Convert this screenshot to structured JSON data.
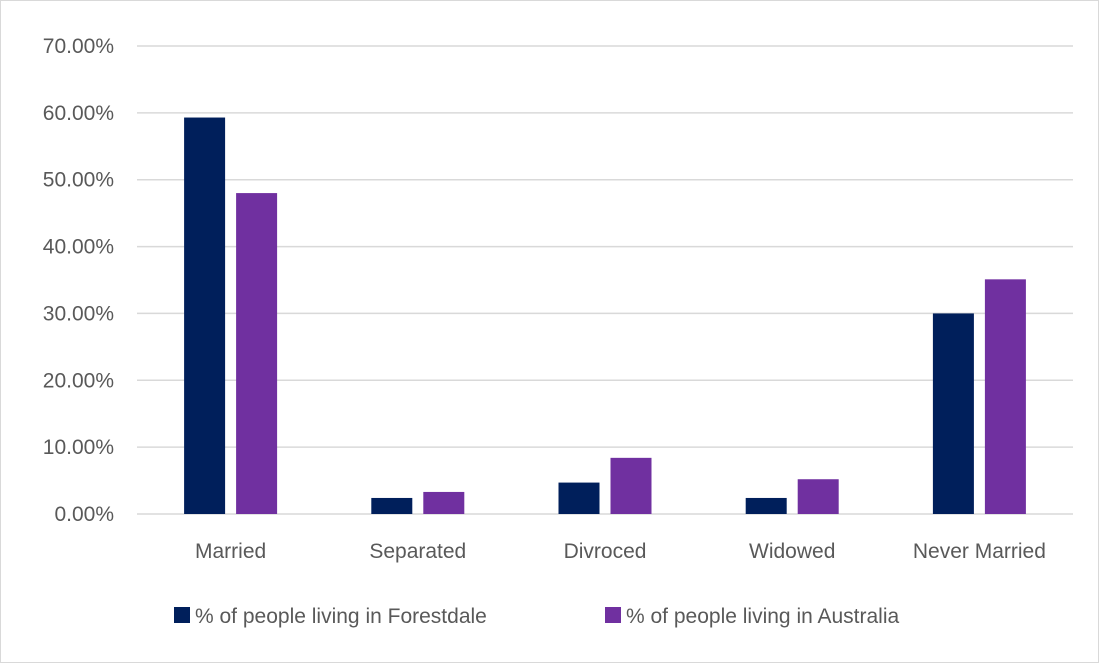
{
  "chart_data": {
    "type": "bar",
    "categories": [
      "Married",
      "Separated",
      "Divroced",
      "Widowed",
      "Never Married"
    ],
    "series": [
      {
        "name": "% of people living in Forestdale",
        "values": [
          59.3,
          2.4,
          4.7,
          2.4,
          30.0
        ],
        "color": "#001f5b"
      },
      {
        "name": "% of people living in Australia",
        "values": [
          48.0,
          3.3,
          8.4,
          5.2,
          35.1
        ],
        "color": "#7030a0"
      }
    ],
    "ylim": [
      0,
      70
    ],
    "yticks": [
      0,
      10,
      20,
      30,
      40,
      50,
      60,
      70
    ],
    "ytick_labels": [
      "0.00%",
      "10.00%",
      "20.00%",
      "30.00%",
      "40.00%",
      "50.00%",
      "60.00%",
      "70.00%"
    ],
    "grid": true,
    "gridline_color": "#d9d9d9",
    "legend_position": "bottom"
  }
}
